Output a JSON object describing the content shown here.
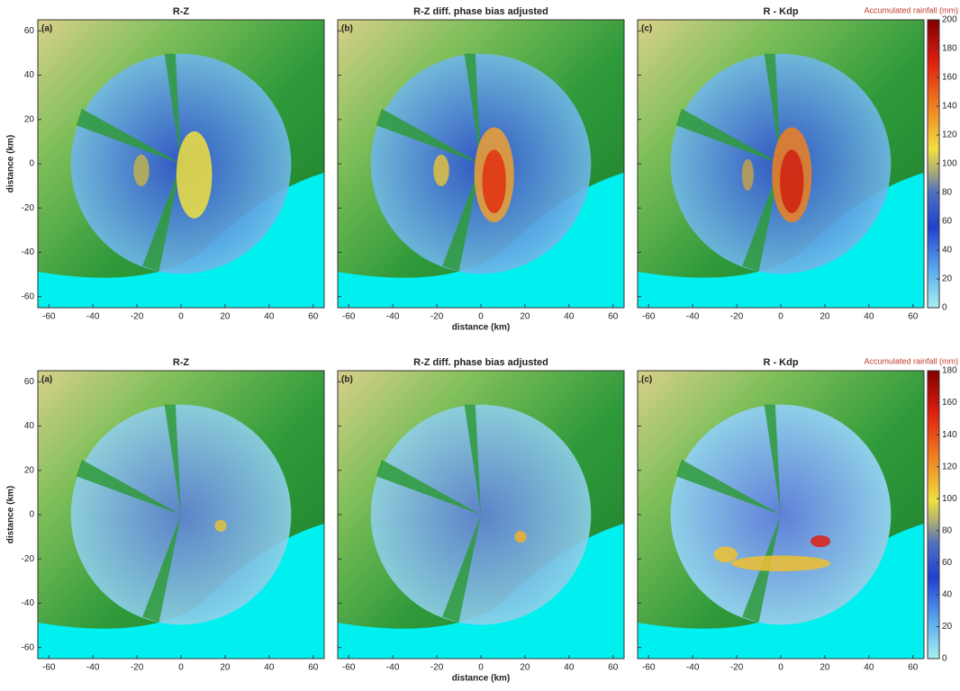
{
  "rows": [
    {
      "panels": [
        {
          "label": "(a)",
          "title": "R-Z"
        },
        {
          "label": "(b)",
          "title": "R-Z diff. phase bias adjusted"
        },
        {
          "label": "(c)",
          "title": "R - Kdp"
        }
      ],
      "xlabel": "distance (km)",
      "ylabel": "distance (km)",
      "xlim": [
        -65,
        65
      ],
      "ylim": [
        -65,
        65
      ],
      "xticks": [
        -60,
        -40,
        -20,
        0,
        20,
        40,
        60
      ],
      "yticks": [
        -60,
        -40,
        -20,
        0,
        20,
        40,
        60
      ],
      "colorbar": {
        "title": "Accumulated rainfall (mm)",
        "lim": [
          0,
          200
        ],
        "ticks": [
          0,
          20,
          40,
          60,
          80,
          100,
          120,
          140,
          160,
          180,
          200
        ]
      }
    },
    {
      "panels": [
        {
          "label": "(a)",
          "title": "R-Z"
        },
        {
          "label": "(b)",
          "title": "R-Z diff. phase bias adjusted"
        },
        {
          "label": "(c)",
          "title": "R - Kdp"
        }
      ],
      "xlabel": "distance (km)",
      "ylabel": "distance (km)",
      "xlim": [
        -65,
        65
      ],
      "ylim": [
        -65,
        65
      ],
      "xticks": [
        -60,
        -40,
        -20,
        0,
        20,
        40,
        60
      ],
      "yticks": [
        -60,
        -40,
        -20,
        0,
        20,
        40,
        60
      ],
      "colorbar": {
        "title": "Accumulated rainfall (mm)",
        "lim": [
          0,
          180
        ],
        "ticks": [
          0,
          20,
          40,
          60,
          80,
          100,
          120,
          140,
          160,
          180
        ]
      }
    }
  ]
}
